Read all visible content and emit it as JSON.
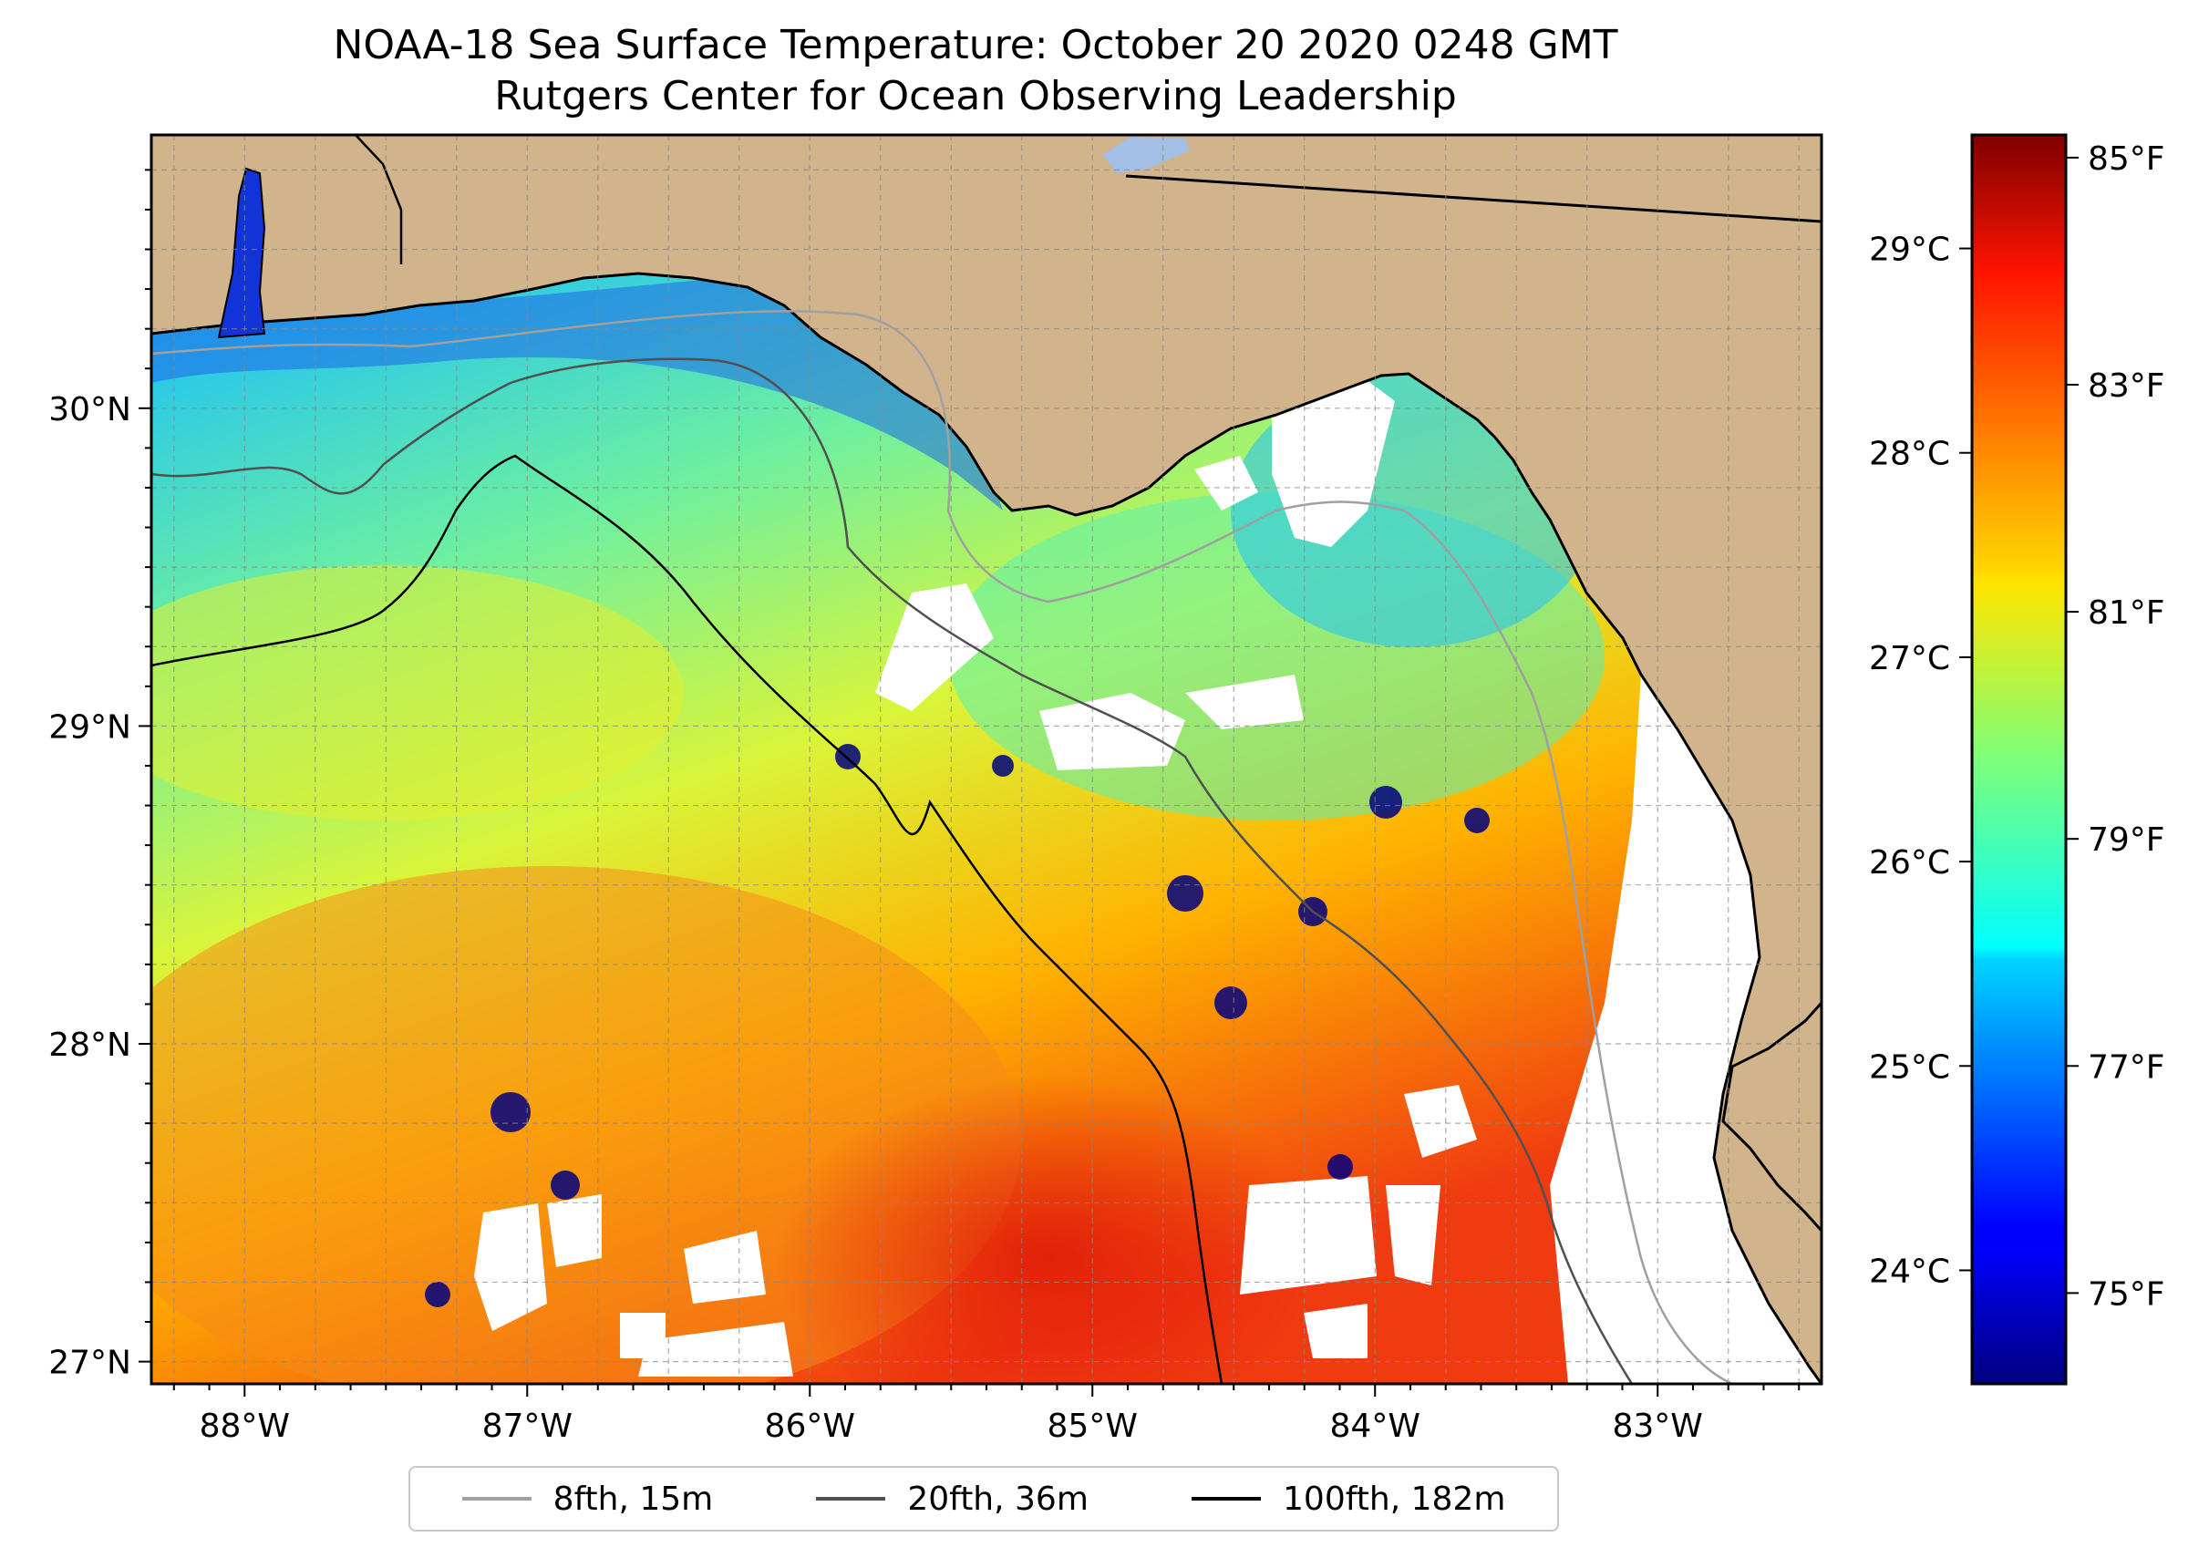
{
  "title": {
    "line1": "NOAA-18 Sea Surface Temperature: October 20 2020 0248 GMT",
    "line2": "Rutgers Center for Ocean Observing Leadership"
  },
  "map": {
    "lon_range": [
      -88.33,
      -82.42
    ],
    "lat_range": [
      26.93,
      30.86
    ],
    "land_color": "#d2b48c",
    "cloud_color": "#ffffff",
    "lat_ticks": [
      {
        "value": 27,
        "label": "27°N"
      },
      {
        "value": 28,
        "label": "28°N"
      },
      {
        "value": 29,
        "label": "29°N"
      },
      {
        "value": 30,
        "label": "30°N"
      }
    ],
    "lon_ticks": [
      {
        "value": -88,
        "label": "88°W"
      },
      {
        "value": -87,
        "label": "87°W"
      },
      {
        "value": -86,
        "label": "86°W"
      },
      {
        "value": -85,
        "label": "85°W"
      },
      {
        "value": -84,
        "label": "84°W"
      },
      {
        "value": -83,
        "label": "83°W"
      }
    ],
    "gridlines": true
  },
  "colorbar": {
    "colormap": "jet",
    "range_f": [
      74.2,
      85.2
    ],
    "fahrenheit_ticks": [
      {
        "value": 75,
        "label": "75°F"
      },
      {
        "value": 77,
        "label": "77°F"
      },
      {
        "value": 79,
        "label": "79°F"
      },
      {
        "value": 81,
        "label": "81°F"
      },
      {
        "value": 83,
        "label": "83°F"
      },
      {
        "value": 85,
        "label": "85°F"
      }
    ],
    "celsius_ticks": [
      {
        "value": 24,
        "label": "24°C"
      },
      {
        "value": 25,
        "label": "25°C"
      },
      {
        "value": 26,
        "label": "26°C"
      },
      {
        "value": 27,
        "label": "27°C"
      },
      {
        "value": 28,
        "label": "28°C"
      },
      {
        "value": 29,
        "label": "29°C"
      }
    ]
  },
  "legend": {
    "placement": "bottom-center",
    "items": [
      {
        "label": "8fth, 15m",
        "color": "#a0a0a0"
      },
      {
        "label": "20fth, 36m",
        "color": "#505050"
      },
      {
        "label": "100fth, 182m",
        "color": "#000000"
      }
    ]
  }
}
